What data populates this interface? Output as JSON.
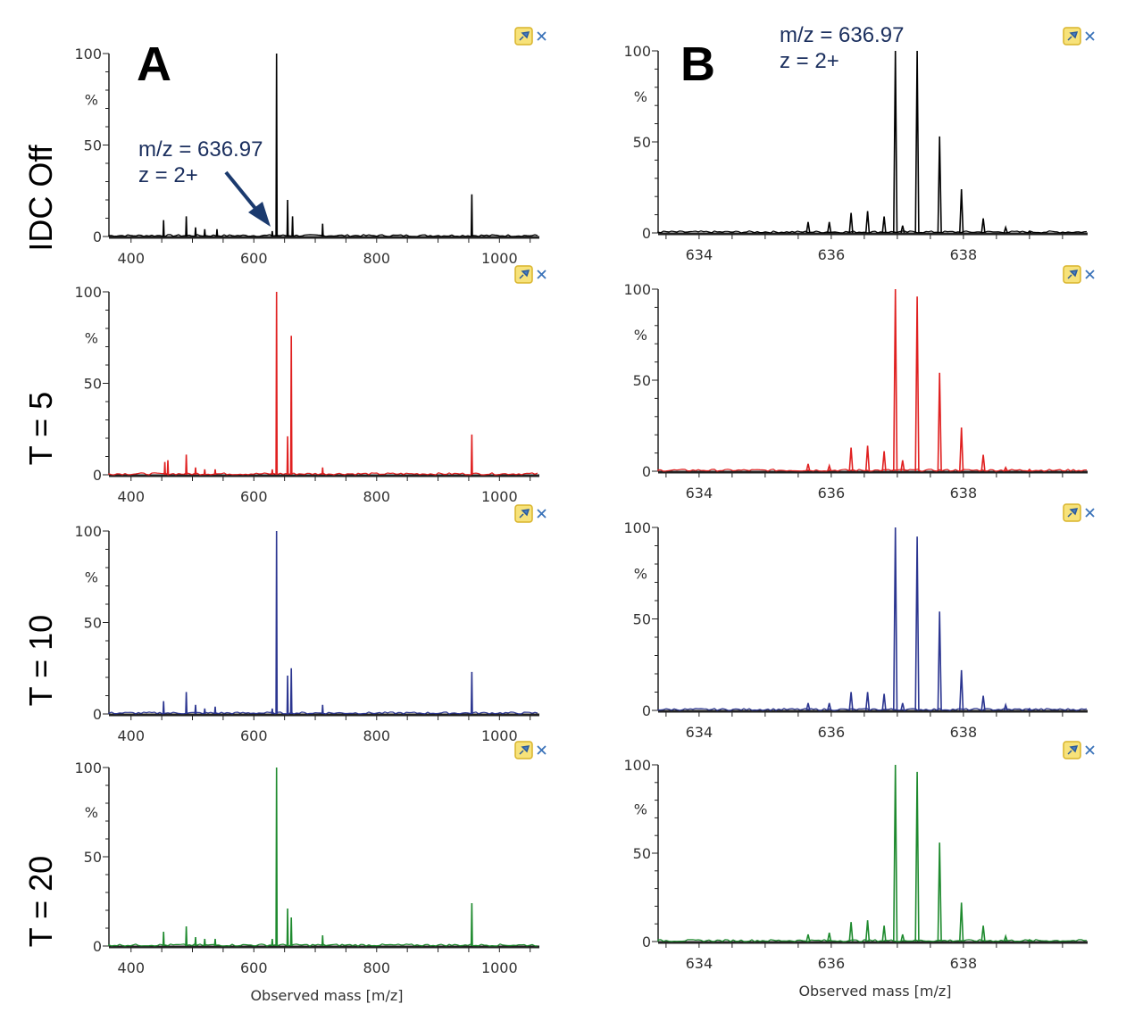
{
  "figure": {
    "panel_letters": [
      "A",
      "B"
    ],
    "annotation": {
      "mz": "m/z = 636.97",
      "z": "z = 2+"
    },
    "row_labels": [
      "IDC Off",
      "T = 5",
      "T = 10",
      "T = 20"
    ],
    "icons": [
      "pin-icon",
      "close-icon"
    ]
  },
  "chart_data": [
    {
      "type": "line",
      "panel": "A",
      "row": "IDC Off",
      "color": "#000000",
      "xlabel": "",
      "ylabel": "%",
      "xlim": [
        364,
        1065
      ],
      "ylim": [
        0,
        100
      ],
      "xticks": [
        400,
        600,
        800,
        1000
      ],
      "yticks": [
        0,
        50,
        100
      ],
      "peaks": [
        [
          453,
          9
        ],
        [
          490,
          11
        ],
        [
          505,
          5
        ],
        [
          520,
          4
        ],
        [
          540,
          4
        ],
        [
          630,
          3
        ],
        [
          637,
          100
        ],
        [
          655,
          20
        ],
        [
          663,
          11
        ],
        [
          712,
          7
        ],
        [
          955,
          23
        ]
      ]
    },
    {
      "type": "line",
      "panel": "B",
      "row": "IDC Off",
      "color": "#000000",
      "xlabel": "",
      "ylabel": "%",
      "xlim": [
        633.38,
        639.88
      ],
      "ylim": [
        0,
        100
      ],
      "xticks": [
        634,
        636,
        638
      ],
      "yticks": [
        0,
        50,
        100
      ],
      "peaks": [
        [
          635.65,
          6
        ],
        [
          635.97,
          6
        ],
        [
          636.3,
          11
        ],
        [
          636.55,
          12
        ],
        [
          636.8,
          9
        ],
        [
          636.97,
          100
        ],
        [
          637.08,
          4
        ],
        [
          637.3,
          100
        ],
        [
          637.64,
          53
        ],
        [
          637.97,
          24
        ],
        [
          638.3,
          8
        ],
        [
          638.64,
          3
        ],
        [
          639.0,
          1
        ]
      ]
    },
    {
      "type": "line",
      "panel": "A",
      "row": "T = 5",
      "color": "#e02020",
      "xlabel": "",
      "ylabel": "%",
      "xlim": [
        364,
        1065
      ],
      "ylim": [
        0,
        100
      ],
      "xticks": [
        400,
        600,
        800,
        1000
      ],
      "yticks": [
        0,
        50,
        100
      ],
      "peaks": [
        [
          455,
          7
        ],
        [
          460,
          8
        ],
        [
          490,
          11
        ],
        [
          505,
          4
        ],
        [
          520,
          3
        ],
        [
          537,
          3
        ],
        [
          630,
          3
        ],
        [
          637,
          100
        ],
        [
          655,
          21
        ],
        [
          661,
          76
        ],
        [
          712,
          4
        ],
        [
          955,
          22
        ]
      ]
    },
    {
      "type": "line",
      "panel": "B",
      "row": "T = 5",
      "color": "#e02020",
      "xlabel": "",
      "ylabel": "%",
      "xlim": [
        633.38,
        639.88
      ],
      "ylim": [
        0,
        100
      ],
      "xticks": [
        634,
        636,
        638
      ],
      "yticks": [
        0,
        50,
        100
      ],
      "peaks": [
        [
          635.65,
          4
        ],
        [
          635.97,
          3
        ],
        [
          636.3,
          13
        ],
        [
          636.55,
          14
        ],
        [
          636.8,
          11
        ],
        [
          636.97,
          100
        ],
        [
          637.08,
          6
        ],
        [
          637.3,
          96
        ],
        [
          637.64,
          54
        ],
        [
          637.97,
          24
        ],
        [
          638.3,
          9
        ],
        [
          638.64,
          2
        ],
        [
          639.0,
          1
        ]
      ]
    },
    {
      "type": "line",
      "panel": "A",
      "row": "T = 10",
      "color": "#2b3590",
      "xlabel": "",
      "ylabel": "%",
      "xlim": [
        364,
        1065
      ],
      "ylim": [
        0,
        100
      ],
      "xticks": [
        400,
        600,
        800,
        1000
      ],
      "yticks": [
        0,
        50,
        100
      ],
      "peaks": [
        [
          453,
          7
        ],
        [
          490,
          12
        ],
        [
          505,
          5
        ],
        [
          520,
          3
        ],
        [
          537,
          4
        ],
        [
          630,
          3
        ],
        [
          637,
          100
        ],
        [
          655,
          21
        ],
        [
          661,
          25
        ],
        [
          712,
          5
        ],
        [
          955,
          23
        ]
      ]
    },
    {
      "type": "line",
      "panel": "B",
      "row": "T = 10",
      "color": "#2b3590",
      "xlabel": "",
      "ylabel": "%",
      "xlim": [
        633.38,
        639.88
      ],
      "ylim": [
        0,
        100
      ],
      "xticks": [
        634,
        636,
        638
      ],
      "yticks": [
        0,
        50,
        100
      ],
      "peaks": [
        [
          635.65,
          4
        ],
        [
          635.97,
          4
        ],
        [
          636.3,
          10
        ],
        [
          636.55,
          10
        ],
        [
          636.8,
          9
        ],
        [
          636.97,
          100
        ],
        [
          637.08,
          4
        ],
        [
          637.3,
          95
        ],
        [
          637.64,
          54
        ],
        [
          637.97,
          22
        ],
        [
          638.3,
          8
        ],
        [
          638.64,
          3
        ],
        [
          639.0,
          1
        ]
      ]
    },
    {
      "type": "line",
      "panel": "A",
      "row": "T = 20",
      "color": "#1e8a2e",
      "xlabel": "Observed mass [m/z]",
      "ylabel": "%",
      "xlim": [
        364,
        1065
      ],
      "ylim": [
        0,
        100
      ],
      "xticks": [
        400,
        600,
        800,
        1000
      ],
      "yticks": [
        0,
        50,
        100
      ],
      "peaks": [
        [
          453,
          8
        ],
        [
          490,
          11
        ],
        [
          505,
          5
        ],
        [
          520,
          4
        ],
        [
          537,
          4
        ],
        [
          630,
          4
        ],
        [
          637,
          100
        ],
        [
          655,
          21
        ],
        [
          661,
          16
        ],
        [
          712,
          6
        ],
        [
          955,
          24
        ]
      ]
    },
    {
      "type": "line",
      "panel": "B",
      "row": "T = 20",
      "color": "#1e8a2e",
      "xlabel": "Observed mass [m/z]",
      "ylabel": "%",
      "xlim": [
        633.38,
        639.88
      ],
      "ylim": [
        0,
        100
      ],
      "xticks": [
        634,
        636,
        638
      ],
      "yticks": [
        0,
        50,
        100
      ],
      "peaks": [
        [
          635.65,
          4
        ],
        [
          635.97,
          5
        ],
        [
          636.3,
          11
        ],
        [
          636.55,
          12
        ],
        [
          636.8,
          9
        ],
        [
          636.97,
          100
        ],
        [
          637.08,
          4
        ],
        [
          637.3,
          96
        ],
        [
          637.64,
          56
        ],
        [
          637.97,
          22
        ],
        [
          638.3,
          9
        ],
        [
          638.64,
          3
        ],
        [
          639.0,
          1
        ]
      ]
    }
  ]
}
